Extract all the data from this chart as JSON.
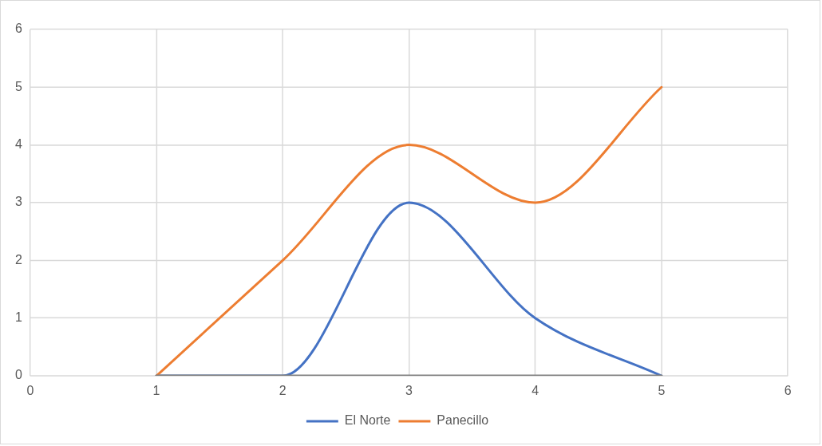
{
  "chart_data": {
    "type": "line",
    "xlim": [
      0,
      6
    ],
    "xticks": [
      0,
      1,
      2,
      3,
      4,
      5,
      6
    ],
    "ylim": [
      0,
      6
    ],
    "yticks": [
      0,
      1,
      2,
      3,
      4,
      5,
      6
    ],
    "grid": true,
    "legend": "bottom",
    "marker": "none",
    "line_style": "solid",
    "series": [
      {
        "name": "El Norte",
        "color": "#4472c4",
        "x": [
          1,
          2,
          3,
          4,
          5
        ],
        "values": [
          0,
          0,
          3,
          1,
          0
        ]
      },
      {
        "name": "Panecillo",
        "color": "#ed7d31",
        "x": [
          1,
          2,
          3,
          4,
          5
        ],
        "values": [
          0,
          2,
          4,
          3,
          5
        ]
      },
      {
        "color": "#808080",
        "x": [
          1,
          2,
          3,
          4,
          5
        ],
        "values": [
          0,
          0,
          0,
          0,
          0
        ]
      }
    ]
  }
}
